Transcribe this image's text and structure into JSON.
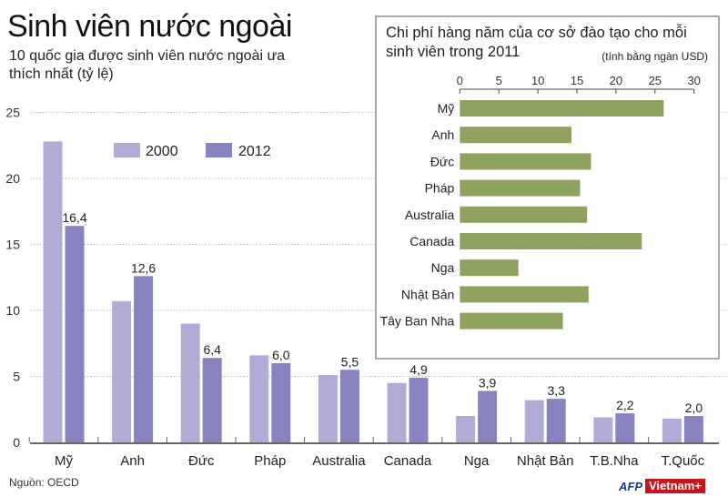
{
  "title": "Sinh viên nước ngoài",
  "source": "Nguồn: OECD",
  "logo": {
    "afp": "AFP",
    "brand": "Vietnam+"
  },
  "colors": {
    "s2000": "#b0acd6",
    "s2012": "#8783bf",
    "inset_bar": "#8fa260"
  },
  "chart_data": [
    {
      "type": "bar",
      "title": "Sinh viên nước ngoài",
      "subtitle": "10 quốc gia được sinh viên nước ngoài ưa thích nhất (tỷ lệ)",
      "categories": [
        "Mỹ",
        "Anh",
        "Đức",
        "Pháp",
        "Australia",
        "Canada",
        "Nga",
        "Nhật Bản",
        "T.B.Nha",
        "T.Quốc"
      ],
      "series": [
        {
          "name": "2000",
          "values": [
            22.8,
            10.7,
            9.0,
            6.6,
            5.1,
            4.5,
            2.0,
            3.2,
            1.9,
            1.8
          ]
        },
        {
          "name": "2012",
          "values": [
            16.4,
            12.6,
            6.4,
            6.0,
            5.5,
            4.9,
            3.9,
            3.3,
            2.2,
            2.0
          ],
          "labels": [
            "16,4",
            "12,6",
            "6,4",
            "6,0",
            "5,5",
            "4,9",
            "3,9",
            "3,3",
            "2,2",
            "2,0"
          ]
        }
      ],
      "ylim": [
        0,
        25
      ],
      "yticks": [
        0,
        5,
        10,
        15,
        20,
        25
      ],
      "grid": true,
      "legend": "top-left"
    },
    {
      "type": "bar",
      "orientation": "horizontal",
      "title": "Chi phí hàng năm của cơ sở đào tạo cho mỗi sinh viên trong 2011",
      "unit": "(tính bằng ngàn USD)",
      "categories": [
        "Mỹ",
        "Anh",
        "Đức",
        "Pháp",
        "Australia",
        "Canada",
        "Nga",
        "Nhật Bản",
        "Tây Ban Nha"
      ],
      "values": [
        26.1,
        14.3,
        16.8,
        15.4,
        16.3,
        23.3,
        7.5,
        16.5,
        13.2
      ],
      "xlim": [
        0,
        30
      ],
      "xticks": [
        0,
        5,
        10,
        15,
        20,
        25,
        30
      ]
    }
  ]
}
